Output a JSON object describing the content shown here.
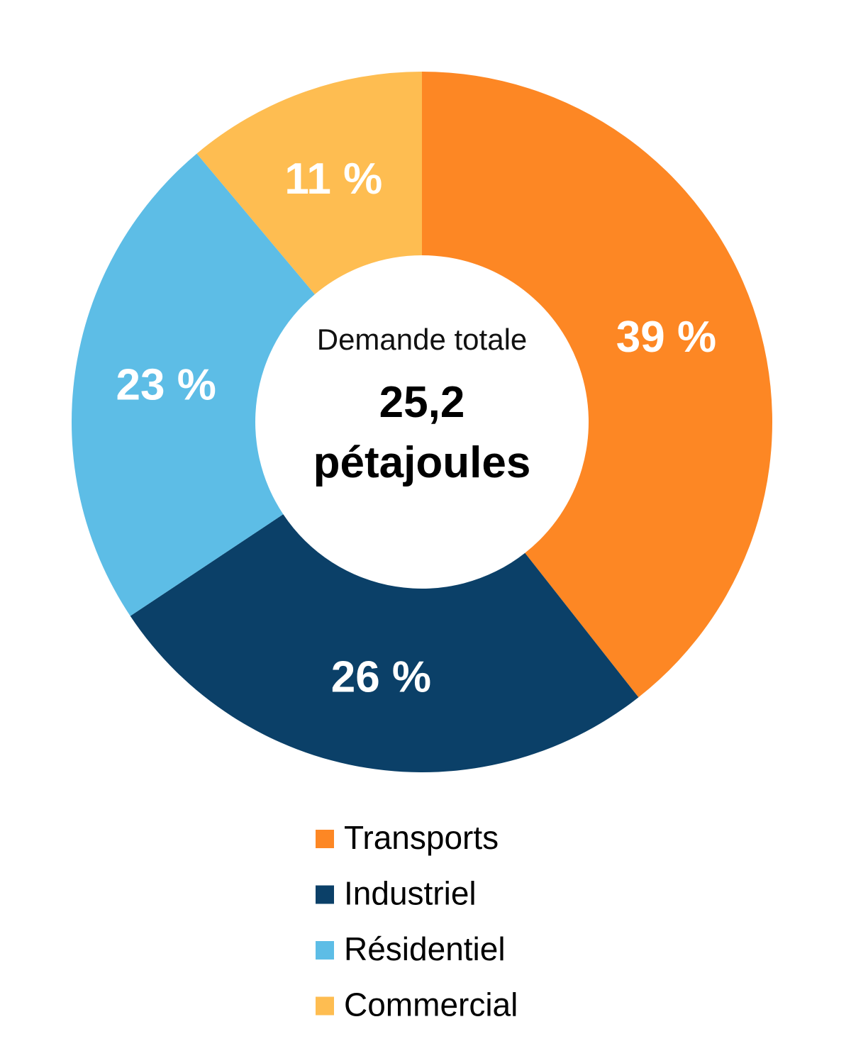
{
  "chart_data": {
    "type": "donut",
    "center_title": "Demande totale",
    "center_value": "25,2 pétajoules",
    "categories": [
      "Transports",
      "Industriel",
      "Résidentiel",
      "Commercial"
    ],
    "values": [
      39,
      26,
      23,
      11
    ],
    "value_labels": [
      "39 %",
      "26 %",
      "23 %",
      "11 %"
    ],
    "colors": [
      "#fd8724",
      "#0b4068",
      "#5dbde6",
      "#febd51"
    ]
  }
}
